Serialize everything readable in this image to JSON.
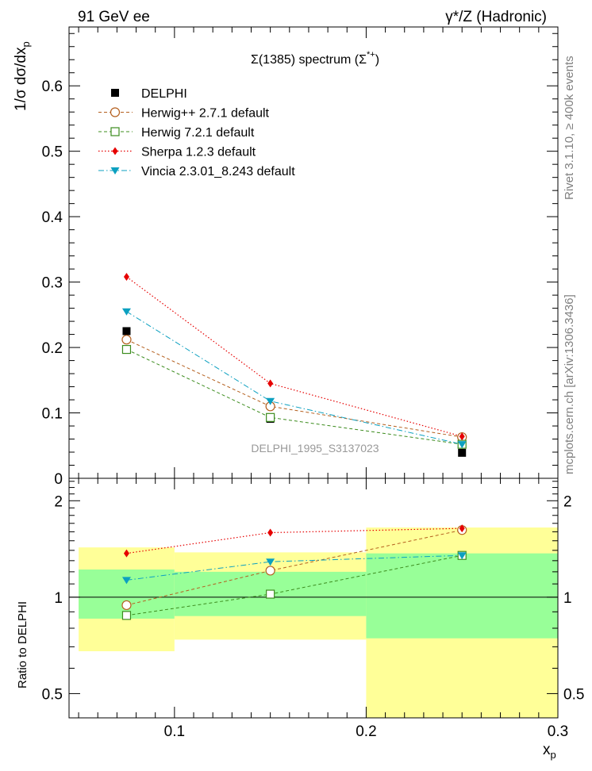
{
  "header": {
    "left": "91 GeV ee",
    "right": "γ*/Z (Hadronic)"
  },
  "side_labels": {
    "rivet": "Rivet 3.1.10, ≥ 400k events",
    "mcplots": "mcplots.cern.ch [arXiv:1306.3436]"
  },
  "chart_data": [
    {
      "type": "scatter",
      "title": "Σ(1385) spectrum (Σ*+)",
      "title_main": "Σ(1385) spectrum (Σ",
      "title_sup": "*+",
      "title_close": ")",
      "ylabel": "1/σ dσ/dx",
      "ylabel_sub": "p",
      "xlim": [
        0.045,
        0.3
      ],
      "ylim": [
        0,
        0.69
      ],
      "yticks": [
        0,
        0.1,
        0.2,
        0.3,
        0.4,
        0.5,
        0.6
      ],
      "ytick_labels": [
        "0",
        "0.1",
        "0.2",
        "0.3",
        "0.4",
        "0.5",
        "0.6"
      ],
      "watermark": "DELPHI_1995_S3137023",
      "x": [
        0.075,
        0.15,
        0.25
      ],
      "series": [
        {
          "name": "DELPHI",
          "key": "delphi",
          "color": "#000000",
          "marker": "square-filled",
          "values": [
            0.225,
            0.091,
            0.039
          ]
        },
        {
          "name": "Herwig++ 2.7.1 default",
          "key": "hpp",
          "color": "#b45f1e",
          "marker": "circle-open",
          "values": [
            0.212,
            0.11,
            0.063
          ]
        },
        {
          "name": "Herwig 7.2.1 default",
          "key": "h7",
          "color": "#3c8c1e",
          "marker": "square-open",
          "values": [
            0.197,
            0.093,
            0.052
          ]
        },
        {
          "name": "Sherpa 1.2.3 default",
          "key": "sherpa",
          "color": "#e60000",
          "marker": "diamond-filled",
          "values": [
            0.308,
            0.145,
            0.064
          ]
        },
        {
          "name": "Vincia 2.3.01_8.243 default",
          "key": "vincia",
          "color": "#0ca0c0",
          "marker": "triangle-down-filled",
          "values": [
            0.255,
            0.118,
            0.052
          ]
        }
      ]
    },
    {
      "type": "scatter",
      "title": "Ratio",
      "ylabel": "Ratio to DELPHI",
      "xlabel": "x",
      "xlabel_sub": "p",
      "scale": "log",
      "xlim": [
        0.045,
        0.3
      ],
      "ylim": [
        0.42,
        2.35
      ],
      "xticks": [
        0.1,
        0.2,
        0.3
      ],
      "xtick_labels": [
        "0.1",
        "0.2",
        "0.3"
      ],
      "yticks": [
        0.5,
        1,
        2
      ],
      "ytick_labels": [
        "0.5",
        "1",
        "2"
      ],
      "bands": [
        {
          "xmin": 0.05,
          "xmax": 0.1,
          "inner": [
            0.857,
            1.22
          ],
          "outer": [
            0.678,
            1.43
          ]
        },
        {
          "xmin": 0.1,
          "xmax": 0.2,
          "inner": [
            0.873,
            1.2
          ],
          "outer": [
            0.737,
            1.38
          ]
        },
        {
          "xmin": 0.2,
          "xmax": 0.3,
          "inner": [
            0.744,
            1.37
          ],
          "outer": [
            0.42,
            1.65
          ]
        }
      ],
      "band_colors": {
        "inner": "#98ff98",
        "outer": "#ffff98"
      },
      "x": [
        0.075,
        0.15,
        0.25
      ],
      "series": [
        {
          "name": "Herwig++ 2.7.1 default",
          "key": "hpp",
          "values": [
            0.944,
            1.21,
            1.62
          ]
        },
        {
          "name": "Herwig 7.2.1 default",
          "key": "h7",
          "values": [
            0.877,
            1.022,
            1.35
          ]
        },
        {
          "name": "Sherpa 1.2.3 default",
          "key": "sherpa",
          "values": [
            1.37,
            1.59,
            1.64
          ]
        },
        {
          "name": "Vincia 2.3.01_8.243 default",
          "key": "vincia",
          "values": [
            1.13,
            1.29,
            1.35
          ]
        }
      ]
    }
  ]
}
